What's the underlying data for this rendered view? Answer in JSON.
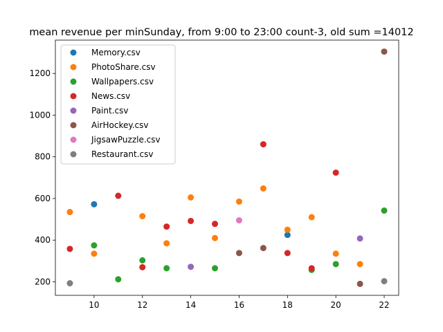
{
  "chart_data": {
    "type": "scatter",
    "title": " mean revenue per minSunday, from 9:00 to 23:00 count-3, old sum =14012",
    "xlabel": "",
    "ylabel": "",
    "xlim": [
      8.4,
      22.6
    ],
    "ylim": [
      135,
      1360
    ],
    "xticks": [
      10,
      12,
      14,
      16,
      18,
      20,
      22
    ],
    "yticks": [
      200,
      400,
      600,
      800,
      1000,
      1200
    ],
    "grid": false,
    "legend_position": "upper-left",
    "series": [
      {
        "name": "Memory.csv",
        "color": "#1f77b4",
        "points": [
          [
            10,
            572
          ],
          [
            18,
            425
          ]
        ]
      },
      {
        "name": "PhotoShare.csv",
        "color": "#ff7f0e",
        "points": [
          [
            9,
            535
          ],
          [
            10,
            335
          ],
          [
            12,
            515
          ],
          [
            13,
            385
          ],
          [
            14,
            605
          ],
          [
            15,
            410
          ],
          [
            16,
            585
          ],
          [
            17,
            648
          ],
          [
            18,
            450
          ],
          [
            19,
            510
          ],
          [
            20,
            335
          ],
          [
            21,
            285
          ]
        ]
      },
      {
        "name": "Wallpapers.csv",
        "color": "#2ca02c",
        "points": [
          [
            10,
            375
          ],
          [
            11,
            212
          ],
          [
            12,
            303
          ],
          [
            13,
            265
          ],
          [
            15,
            265
          ],
          [
            19,
            257
          ],
          [
            20,
            285
          ],
          [
            22,
            542
          ]
        ]
      },
      {
        "name": "News.csv",
        "color": "#d62728",
        "points": [
          [
            9,
            358
          ],
          [
            11,
            613
          ],
          [
            12,
            270
          ],
          [
            13,
            465
          ],
          [
            14,
            492
          ],
          [
            15,
            478
          ],
          [
            17,
            860
          ],
          [
            18,
            338
          ],
          [
            19,
            265
          ],
          [
            20,
            724
          ]
        ]
      },
      {
        "name": "Paint.csv",
        "color": "#9467bd",
        "points": [
          [
            14,
            272
          ],
          [
            21,
            408
          ]
        ]
      },
      {
        "name": "AirHockey.csv",
        "color": "#8c564b",
        "points": [
          [
            16,
            338
          ],
          [
            17,
            362
          ],
          [
            21,
            190
          ],
          [
            22,
            1305
          ]
        ]
      },
      {
        "name": "JigsawPuzzle.csv",
        "color": "#e377c2",
        "points": [
          [
            16,
            495
          ]
        ]
      },
      {
        "name": "Restaurant.csv",
        "color": "#7f7f7f",
        "points": [
          [
            9,
            193
          ],
          [
            22,
            203
          ]
        ]
      }
    ]
  }
}
